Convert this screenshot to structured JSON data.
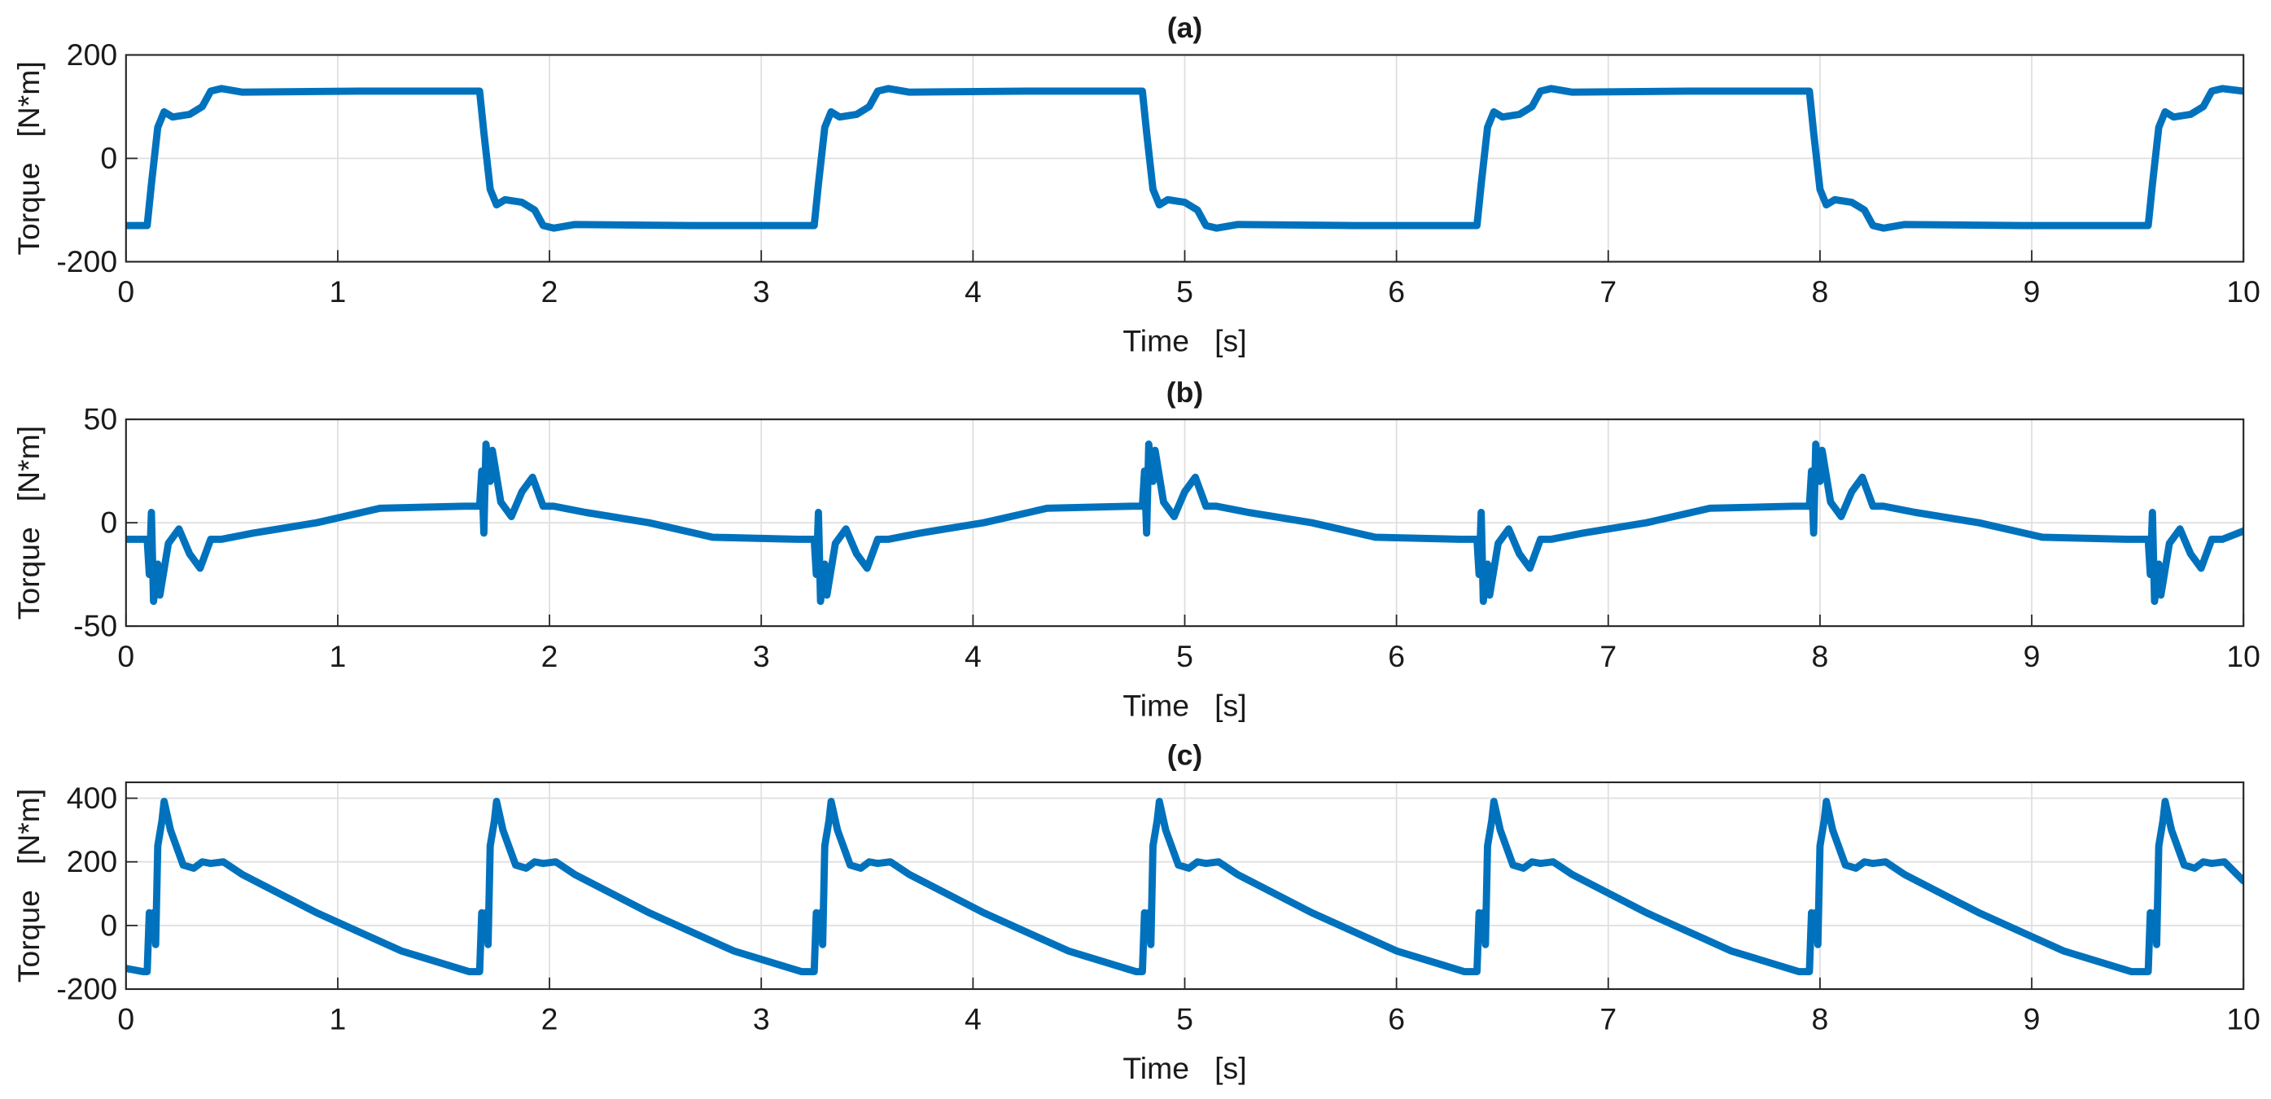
{
  "chart_data": [
    {
      "type": "line",
      "title": "(a)",
      "x_label": "Time   [s]",
      "y_label": "Torque   [N*m]",
      "x": [
        0,
        0.1,
        0.12,
        0.15,
        0.18,
        0.22,
        0.3,
        0.36,
        0.4,
        0.45,
        0.55,
        1.1,
        1.65,
        1.67,
        1.69,
        1.72,
        1.75,
        1.79,
        1.87,
        1.93,
        1.97,
        2.02,
        2.12,
        2.67,
        3.22,
        3.25,
        3.27,
        3.3,
        3.33,
        3.37,
        3.45,
        3.51,
        3.55,
        3.6,
        3.7,
        4.25,
        4.78,
        4.8,
        4.82,
        4.85,
        4.88,
        4.92,
        5.0,
        5.06,
        5.1,
        5.15,
        5.25,
        5.8,
        6.35,
        6.38,
        6.4,
        6.43,
        6.46,
        6.5,
        6.58,
        6.64,
        6.68,
        6.73,
        6.83,
        7.38,
        7.93,
        7.95,
        7.97,
        8.0,
        8.03,
        8.07,
        8.15,
        8.21,
        8.25,
        8.3,
        8.4,
        8.95,
        9.52,
        9.55,
        9.57,
        9.6,
        9.63,
        9.67,
        9.75,
        9.81,
        9.85,
        9.9,
        10
      ],
      "series": [
        {
          "color": "#0072BD",
          "values": [
            -130,
            -130,
            -50,
            60,
            90,
            80,
            85,
            100,
            130,
            135,
            128,
            130,
            130,
            130,
            50,
            -60,
            -90,
            -80,
            -85,
            -100,
            -130,
            -135,
            -128,
            -130,
            -130,
            -130,
            -50,
            60,
            90,
            80,
            85,
            100,
            130,
            135,
            128,
            130,
            130,
            130,
            50,
            -60,
            -90,
            -80,
            -85,
            -100,
            -130,
            -135,
            -128,
            -130,
            -130,
            -130,
            -50,
            60,
            90,
            80,
            85,
            100,
            130,
            135,
            128,
            130,
            130,
            130,
            50,
            -60,
            -90,
            -80,
            -85,
            -100,
            -130,
            -135,
            -128,
            -130,
            -130,
            -130,
            -50,
            60,
            90,
            80,
            85,
            100,
            130,
            135,
            130
          ]
        }
      ],
      "xlim": [
        0,
        10
      ],
      "xticks": [
        0,
        1,
        2,
        3,
        4,
        5,
        6,
        7,
        8,
        9,
        10
      ],
      "ylim": [
        -200,
        200
      ],
      "yticks": [
        -200,
        0,
        200
      ],
      "grid": true
    },
    {
      "type": "line",
      "title": "(b)",
      "x_label": "Time   [s]",
      "y_label": "Torque   [N*m]",
      "x": [
        0,
        0.1,
        0.11,
        0.12,
        0.13,
        0.15,
        0.16,
        0.2,
        0.25,
        0.3,
        0.35,
        0.4,
        0.45,
        0.6,
        0.9,
        1.2,
        1.6,
        1.67,
        1.68,
        1.69,
        1.7,
        1.72,
        1.73,
        1.77,
        1.82,
        1.87,
        1.92,
        1.97,
        2.02,
        2.17,
        2.47,
        2.77,
        3.17,
        3.25,
        3.26,
        3.27,
        3.28,
        3.3,
        3.31,
        3.35,
        3.4,
        3.45,
        3.5,
        3.55,
        3.6,
        3.75,
        4.05,
        4.35,
        4.75,
        4.8,
        4.81,
        4.82,
        4.83,
        4.85,
        4.86,
        4.9,
        4.95,
        5.0,
        5.05,
        5.1,
        5.15,
        5.3,
        5.6,
        5.9,
        6.3,
        6.38,
        6.39,
        6.4,
        6.41,
        6.43,
        6.44,
        6.48,
        6.53,
        6.58,
        6.63,
        6.68,
        6.73,
        6.88,
        7.18,
        7.48,
        7.88,
        7.95,
        7.96,
        7.97,
        7.98,
        8.0,
        8.01,
        8.05,
        8.1,
        8.15,
        8.2,
        8.25,
        8.3,
        8.45,
        8.75,
        9.05,
        9.45,
        9.55,
        9.56,
        9.57,
        9.58,
        9.6,
        9.61,
        9.65,
        9.7,
        9.75,
        9.8,
        9.85,
        9.9,
        10
      ],
      "series": [
        {
          "color": "#0072BD",
          "values": [
            -8,
            -8,
            -25,
            5,
            -38,
            -20,
            -35,
            -10,
            -3,
            -15,
            -22,
            -8,
            -8,
            -5,
            0,
            7,
            8,
            8,
            25,
            -5,
            38,
            20,
            35,
            10,
            3,
            15,
            22,
            8,
            8,
            5,
            0,
            -7,
            -8,
            -8,
            -25,
            5,
            -38,
            -20,
            -35,
            -10,
            -3,
            -15,
            -22,
            -8,
            -8,
            -5,
            0,
            7,
            8,
            8,
            25,
            -5,
            38,
            20,
            35,
            10,
            3,
            15,
            22,
            8,
            8,
            5,
            0,
            -7,
            -8,
            -8,
            -25,
            5,
            -38,
            -20,
            -35,
            -10,
            -3,
            -15,
            -22,
            -8,
            -8,
            -5,
            0,
            7,
            8,
            8,
            25,
            -5,
            38,
            20,
            35,
            10,
            3,
            15,
            22,
            8,
            8,
            5,
            0,
            -7,
            -8,
            -8,
            -25,
            5,
            -38,
            -20,
            -35,
            -10,
            -3,
            -15,
            -22,
            -8,
            -8,
            -4
          ]
        }
      ],
      "xlim": [
        0,
        10
      ],
      "xticks": [
        0,
        1,
        2,
        3,
        4,
        5,
        6,
        7,
        8,
        9,
        10
      ],
      "ylim": [
        -50,
        50
      ],
      "yticks": [
        -50,
        0,
        50
      ],
      "grid": true
    },
    {
      "type": "line",
      "title": "(c)",
      "x_label": "Time   [s]",
      "y_label": "Torque   [N*m]",
      "x": [
        0,
        0.08,
        0.1,
        0.11,
        0.12,
        0.13,
        0.14,
        0.15,
        0.17,
        0.18,
        0.21,
        0.27,
        0.32,
        0.36,
        0.4,
        0.46,
        0.55,
        0.9,
        1.3,
        1.62,
        1.67,
        1.68,
        1.69,
        1.7,
        1.71,
        1.72,
        1.74,
        1.75,
        1.78,
        1.84,
        1.89,
        1.93,
        1.97,
        2.03,
        2.12,
        2.47,
        2.87,
        3.19,
        3.25,
        3.26,
        3.27,
        3.28,
        3.29,
        3.3,
        3.32,
        3.33,
        3.36,
        3.42,
        3.47,
        3.51,
        3.55,
        3.61,
        3.7,
        4.05,
        4.45,
        4.77,
        4.8,
        4.81,
        4.82,
        4.83,
        4.84,
        4.85,
        4.87,
        4.88,
        4.91,
        4.97,
        5.02,
        5.06,
        5.1,
        5.16,
        5.25,
        5.6,
        6.0,
        6.32,
        6.38,
        6.39,
        6.4,
        6.41,
        6.42,
        6.43,
        6.45,
        6.46,
        6.49,
        6.55,
        6.6,
        6.64,
        6.68,
        6.74,
        6.83,
        7.18,
        7.58,
        7.9,
        7.95,
        7.96,
        7.97,
        7.98,
        7.99,
        8.0,
        8.02,
        8.03,
        8.06,
        8.12,
        8.17,
        8.21,
        8.25,
        8.31,
        8.4,
        8.75,
        9.15,
        9.47,
        9.55,
        9.56,
        9.57,
        9.58,
        9.59,
        9.6,
        9.62,
        9.63,
        9.66,
        9.72,
        9.77,
        9.81,
        9.85,
        9.91,
        10
      ],
      "series": [
        {
          "color": "#0072BD",
          "values": [
            -135,
            -145,
            -145,
            40,
            -20,
            40,
            -60,
            250,
            330,
            390,
            300,
            190,
            180,
            200,
            195,
            200,
            160,
            40,
            -80,
            -145,
            -145,
            40,
            -20,
            40,
            -60,
            250,
            330,
            390,
            300,
            190,
            180,
            200,
            195,
            200,
            160,
            40,
            -80,
            -145,
            -145,
            40,
            -20,
            40,
            -60,
            250,
            330,
            390,
            300,
            190,
            180,
            200,
            195,
            200,
            160,
            40,
            -80,
            -145,
            -145,
            40,
            -20,
            40,
            -60,
            250,
            330,
            390,
            300,
            190,
            180,
            200,
            195,
            200,
            160,
            40,
            -80,
            -145,
            -145,
            40,
            -20,
            40,
            -60,
            250,
            330,
            390,
            300,
            190,
            180,
            200,
            195,
            200,
            160,
            40,
            -80,
            -145,
            -145,
            40,
            -20,
            40,
            -60,
            250,
            330,
            390,
            300,
            190,
            180,
            200,
            195,
            200,
            160,
            40,
            -80,
            -145,
            -145,
            40,
            -20,
            40,
            -60,
            250,
            330,
            390,
            300,
            190,
            180,
            200,
            195,
            200,
            140
          ]
        }
      ],
      "xlim": [
        0,
        10
      ],
      "xticks": [
        0,
        1,
        2,
        3,
        4,
        5,
        6,
        7,
        8,
        9,
        10
      ],
      "ylim": [
        -200,
        450
      ],
      "yticks": [
        -200,
        0,
        200,
        400
      ],
      "grid": true
    }
  ]
}
